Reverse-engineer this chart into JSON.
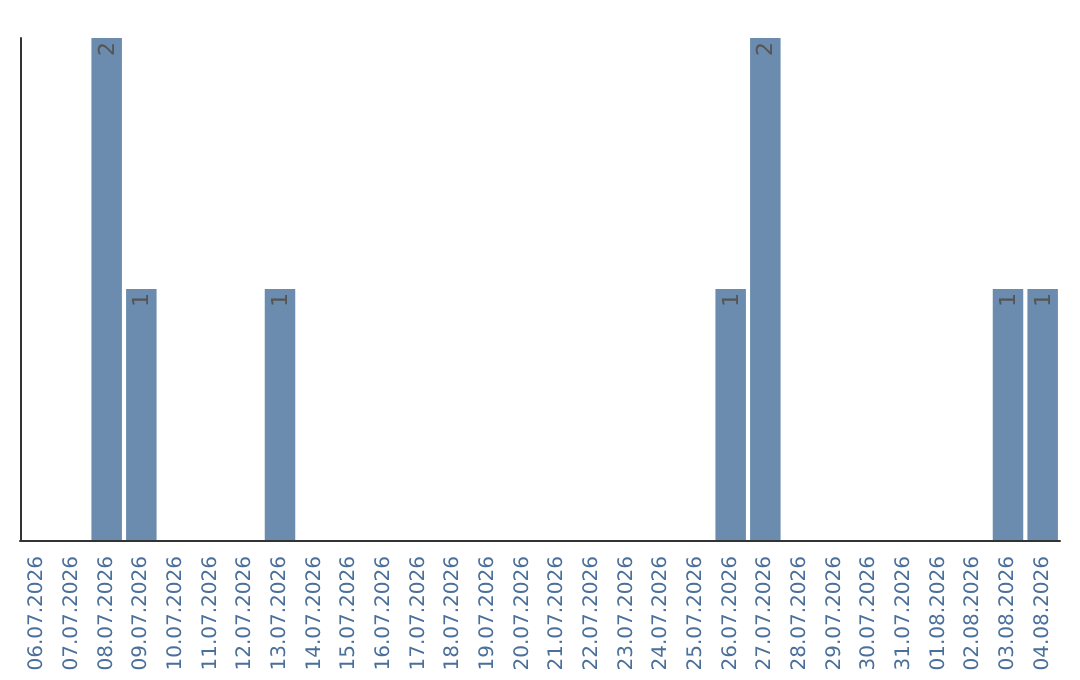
{
  "chart_data": {
    "type": "bar",
    "categories": [
      "06.07.2026",
      "07.07.2026",
      "08.07.2026",
      "09.07.2026",
      "10.07.2026",
      "11.07.2026",
      "12.07.2026",
      "13.07.2026",
      "14.07.2026",
      "15.07.2026",
      "16.07.2026",
      "17.07.2026",
      "18.07.2026",
      "19.07.2026",
      "20.07.2026",
      "21.07.2026",
      "22.07.2026",
      "23.07.2026",
      "24.07.2026",
      "25.07.2026",
      "26.07.2026",
      "27.07.2026",
      "28.07.2026",
      "29.07.2026",
      "30.07.2026",
      "31.07.2026",
      "01.08.2026",
      "02.08.2026",
      "03.08.2026",
      "04.08.2026"
    ],
    "values": [
      0,
      0,
      2,
      1,
      0,
      0,
      0,
      1,
      0,
      0,
      0,
      0,
      0,
      0,
      0,
      0,
      0,
      0,
      0,
      0,
      1,
      2,
      0,
      0,
      0,
      0,
      0,
      0,
      1,
      1
    ],
    "value_labels": [
      null,
      null,
      "2",
      "1",
      null,
      null,
      null,
      "1",
      null,
      null,
      null,
      null,
      null,
      null,
      null,
      null,
      null,
      null,
      null,
      null,
      "1",
      "2",
      null,
      null,
      null,
      null,
      null,
      null,
      "1",
      "1"
    ],
    "color": "#6b8cae"
  }
}
